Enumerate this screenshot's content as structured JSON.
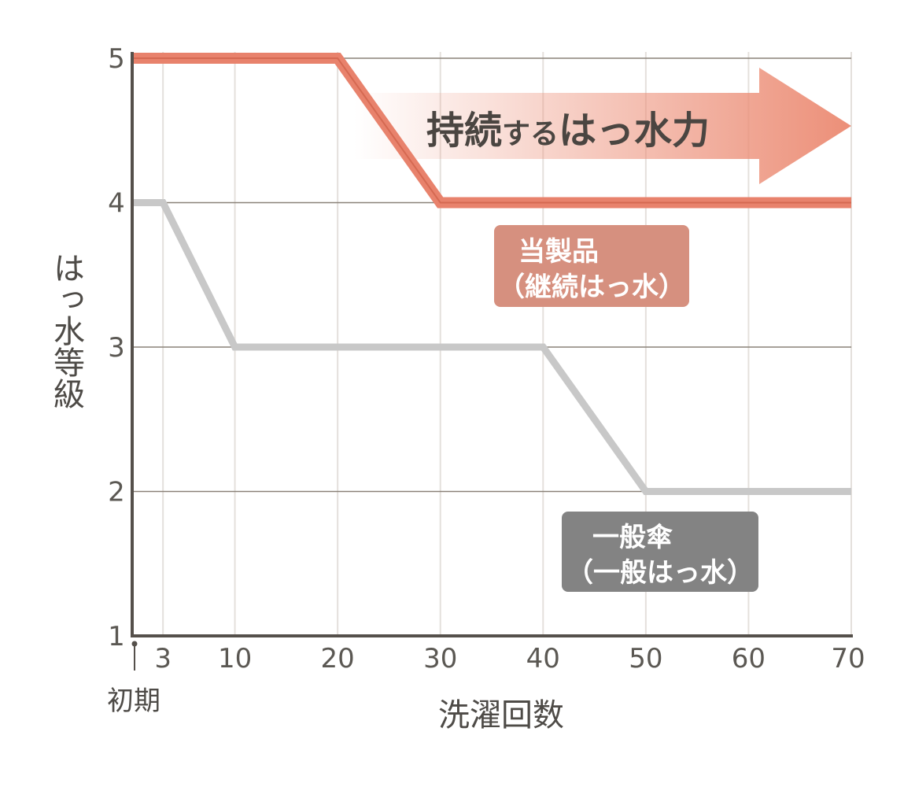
{
  "chart_data": {
    "type": "line",
    "xlabel": "洗濯回数",
    "ylabel": "はっ水等級",
    "x_ticks": [
      3,
      10,
      20,
      30,
      40,
      50,
      60,
      70
    ],
    "y_ticks": [
      1,
      2,
      3,
      4,
      5
    ],
    "x_origin_label": "初期",
    "xlim": [
      0,
      70
    ],
    "ylim": [
      1,
      5
    ],
    "grid": true,
    "banner": {
      "text_large_1": "持続",
      "text_small": "する",
      "text_large_2": "はっ水力"
    },
    "series": [
      {
        "name": "当製品（継続はっ水）",
        "label_line1": "当製品",
        "label_line2": "（継続はっ水）",
        "color": "#e8826c",
        "points": [
          [
            0,
            5
          ],
          [
            20,
            5
          ],
          [
            30,
            4
          ],
          [
            70,
            4
          ]
        ]
      },
      {
        "name": "一般傘（一般はっ水）",
        "label_line1": "一般傘",
        "label_line2": "（一般はっ水）",
        "color": "#c8c8c8",
        "points": [
          [
            0,
            4
          ],
          [
            3,
            4
          ],
          [
            10,
            3
          ],
          [
            40,
            3
          ],
          [
            50,
            2
          ],
          [
            70,
            2
          ]
        ]
      }
    ],
    "colors": {
      "axis": "#55504b",
      "grid_h": "#8a8279",
      "grid_v": "#e4e0dc",
      "product_box": "#d6907f",
      "general_box": "#838383",
      "banner": "#ec8f78"
    }
  }
}
